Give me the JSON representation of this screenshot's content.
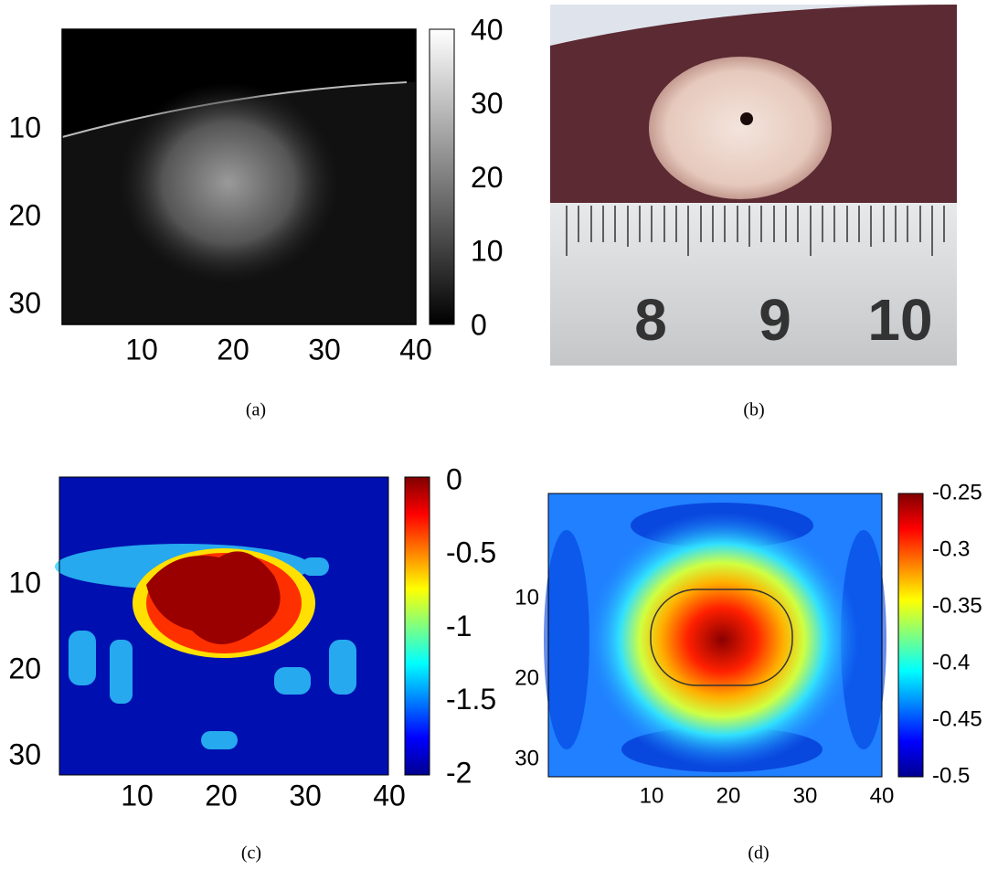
{
  "panels": [
    {
      "caption": "(a)",
      "x_ticks": [
        10,
        20,
        30,
        40
      ],
      "y_ticks": [
        10,
        20,
        30
      ],
      "colorbar_ticks": [
        40,
        30,
        20,
        10,
        0
      ]
    },
    {
      "caption": "(b)",
      "ruler_labels": [
        8,
        9,
        10
      ]
    },
    {
      "caption": "(c)",
      "x_ticks": [
        10,
        20,
        30,
        40
      ],
      "y_ticks": [
        10,
        20,
        30
      ],
      "colorbar_ticks": [
        0,
        -0.5,
        -1,
        -1.5,
        -2
      ]
    },
    {
      "caption": "(d)",
      "x_ticks": [
        10,
        20,
        30,
        40
      ],
      "y_ticks": [
        10,
        20,
        30
      ],
      "colorbar_ticks": [
        -0.25,
        -0.3,
        -0.35,
        -0.4,
        -0.45,
        -0.5
      ]
    }
  ]
}
